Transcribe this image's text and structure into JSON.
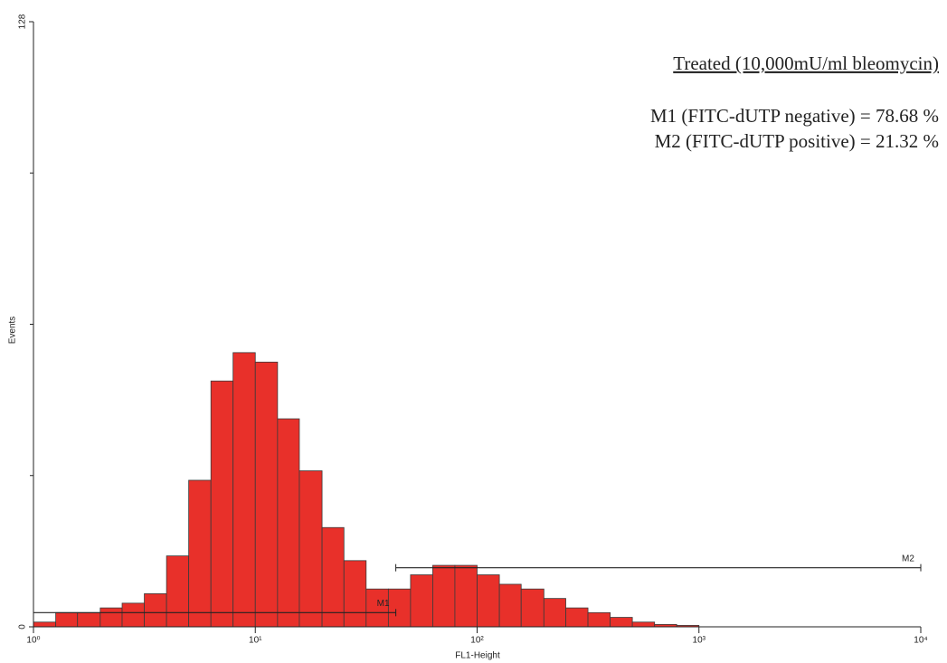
{
  "chart_data": {
    "type": "histogram",
    "xlabel": "FL1-Height",
    "ylabel": "Events",
    "xscale": "log",
    "xlim": [
      1,
      10000
    ],
    "xticks": [
      {
        "value": 1,
        "label": "10⁰"
      },
      {
        "value": 10,
        "label": "10¹"
      },
      {
        "value": 100,
        "label": "10²"
      },
      {
        "value": 1000,
        "label": "10³"
      },
      {
        "value": 10000,
        "label": "10⁴"
      }
    ],
    "ylim": [
      0,
      128
    ],
    "yticks": [
      0,
      128
    ],
    "yminor_ticks": [
      32,
      64,
      96
    ],
    "color": "#e8302a",
    "edgecolor": "#3a3a3a",
    "bins": [
      1,
      1.26,
      1.58,
      2,
      2.51,
      3.16,
      3.98,
      5.01,
      6.31,
      7.94,
      10,
      12.6,
      15.8,
      20,
      25.1,
      31.6,
      39.8,
      50.1,
      63.1,
      79.4,
      100,
      126,
      158,
      200,
      251,
      316,
      398,
      501,
      631,
      794,
      1000
    ],
    "counts": [
      1,
      3,
      3,
      4,
      5,
      7,
      15,
      31,
      52,
      58,
      56,
      44,
      33,
      21,
      14,
      8,
      8,
      11,
      13,
      13,
      11,
      9,
      8,
      6,
      4,
      3,
      2,
      1,
      0.5,
      0.3
    ],
    "markers": [
      {
        "label": "M1",
        "range": [
          1,
          43
        ],
        "y": 3
      },
      {
        "label": "M2",
        "range": [
          43,
          10000
        ],
        "y": 12.5
      }
    ],
    "annotations": [
      "Treated (10,000mU/ml bleomycin)",
      "M1 (FITC-dUTP negative) = 78.68 %",
      "M2 (FITC-dUTP positive) = 21.32 %"
    ]
  }
}
